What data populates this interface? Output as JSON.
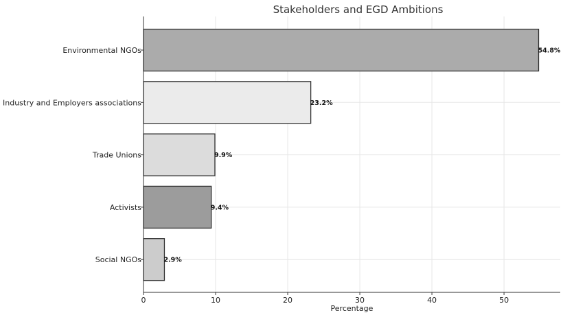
{
  "chart_data": {
    "type": "bar",
    "orientation": "horizontal",
    "title": "Stakeholders and EGD Ambitions",
    "xlabel": "Percentage",
    "ylabel": "",
    "xlim": [
      0,
      57.8
    ],
    "xticks": [
      0,
      10,
      20,
      30,
      40,
      50
    ],
    "grid": true,
    "categories": [
      "Environmental NGOs",
      "Industry and Employers associations",
      "Trade Unions",
      "Activists",
      "Social NGOs"
    ],
    "values": [
      54.8,
      23.2,
      9.9,
      9.4,
      2.9
    ],
    "data_labels": [
      "54.8%",
      "23.2%",
      "9.9%",
      "9.4%",
      "2.9%"
    ],
    "bar_colors": [
      "#ababab",
      "#ebebeb",
      "#dcdcdc",
      "#9c9c9c",
      "#cccccc"
    ]
  }
}
